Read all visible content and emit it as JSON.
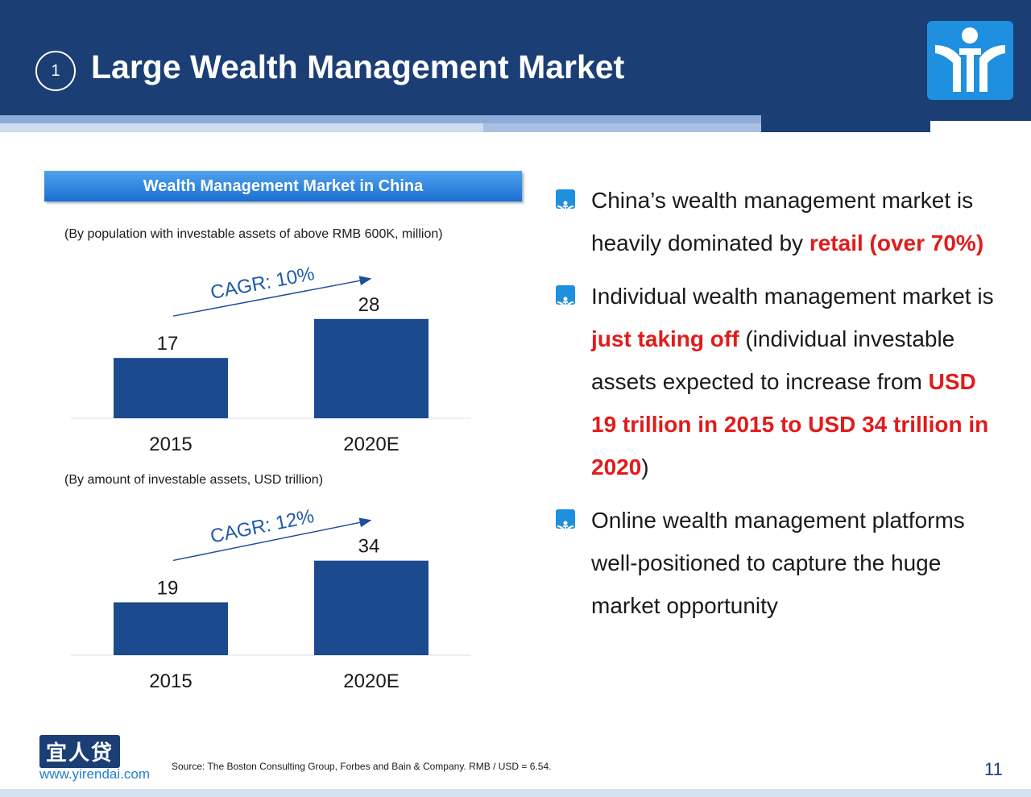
{
  "slide": {
    "number": "1",
    "title": "Large Wealth Management Market",
    "page_number": "11",
    "source": "Source:   The Boston Consulting Group, Forbes and Bain & Company. RMB / USD = 6.54.",
    "footer_cn": "宜人贷",
    "footer_url": "www.yirendai.com"
  },
  "panel": {
    "title": "Wealth Management Market in China"
  },
  "chart_data": [
    {
      "type": "bar",
      "note": "(By population with investable assets of above RMB 600K, million)",
      "categories": [
        "2015",
        "2020E"
      ],
      "values": [
        17,
        28
      ],
      "value_labels": [
        "17",
        "28"
      ],
      "annotation": "CAGR: 10%",
      "color": "#1b4a8f"
    },
    {
      "type": "bar",
      "note": "(By amount of investable assets, USD trillion)",
      "categories": [
        "2015",
        "2020E"
      ],
      "values": [
        19,
        34
      ],
      "value_labels": [
        "19",
        "34"
      ],
      "annotation": "CAGR: 12%",
      "color": "#1b4a8f"
    }
  ],
  "bullets": [
    {
      "parts": [
        {
          "text": "China’s wealth management market is heavily dominated by ",
          "hl": false
        },
        {
          "text": "retail (over 70%)",
          "hl": true
        }
      ]
    },
    {
      "parts": [
        {
          "text": "Individual wealth management market is ",
          "hl": false
        },
        {
          "text": "just taking off",
          "hl": true
        },
        {
          "text": " (individual investable assets expected to increase from ",
          "hl": false
        },
        {
          "text": "USD 19 trillion in 2015 to USD 34 trillion in 2020",
          "hl": true
        },
        {
          "text": ")",
          "hl": false
        }
      ]
    },
    {
      "parts": [
        {
          "text": "Online wealth management platforms well-positioned to capture the huge market opportunity",
          "hl": false
        }
      ]
    }
  ],
  "colors": {
    "header": "#1b3e75",
    "accent": "#1f8fe0",
    "highlight": "#e21b1b",
    "bar": "#1b4a8f",
    "cagr_text": "#1f5aa8"
  }
}
